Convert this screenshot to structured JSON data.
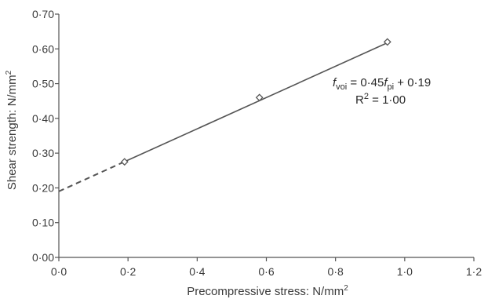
{
  "chart_data": {
    "type": "scatter",
    "title": "",
    "xlabel": "Precompressive stress: N/mm",
    "xlabel_sup": "2",
    "ylabel": "Shear strength: N/mm",
    "ylabel_sup": "2",
    "xlim": [
      0.0,
      1.2
    ],
    "ylim": [
      0.0,
      0.7
    ],
    "x_ticks": [
      0.0,
      0.2,
      0.4,
      0.6,
      0.8,
      1.0,
      1.2
    ],
    "x_tick_labels": [
      "0·0",
      "0·2",
      "0·4",
      "0·6",
      "0·8",
      "1·0",
      "1·2"
    ],
    "y_ticks": [
      0.0,
      0.1,
      0.2,
      0.3,
      0.4,
      0.5,
      0.6,
      0.7
    ],
    "y_tick_labels": [
      "0·00",
      "0·10",
      "0·20",
      "0·30",
      "0·40",
      "0·50",
      "0·60",
      "0·70"
    ],
    "grid": false,
    "series": [
      {
        "marker": "diamond",
        "x": [
          0.19,
          0.58,
          0.95
        ],
        "y": [
          0.275,
          0.46,
          0.62
        ]
      }
    ],
    "trendline": {
      "slope": 0.45,
      "intercept": 0.19,
      "solid_x": [
        0.19,
        0.95
      ],
      "dashed_x": [
        0.0,
        0.19
      ]
    },
    "annotations": {
      "equation": {
        "f": "f",
        "voi_sub": "voi",
        "mid": " = 0·45",
        "f2": "f",
        "pi_sub": "pi",
        "end": " + 0·19"
      },
      "r2": {
        "r": "R",
        "sup": "2",
        "rest": " = 1·00"
      }
    },
    "colors": {
      "axis": "#555555",
      "line": "#555555",
      "marker": "#555555",
      "text": "#3a3a3a"
    }
  }
}
